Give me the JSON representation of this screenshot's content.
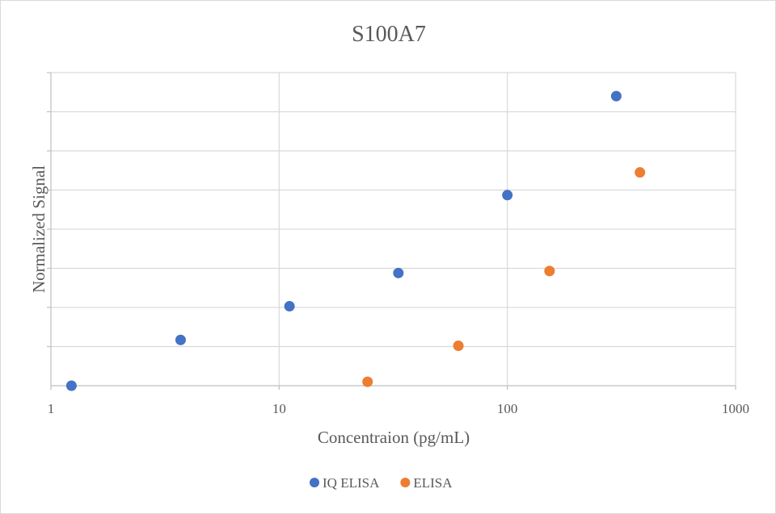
{
  "chart_data": {
    "type": "scatter",
    "title": "S100A7",
    "xlabel": "Concentraion (pg/mL)",
    "ylabel": "Normalized Signal",
    "x_scale": "log",
    "xlim": [
      1,
      1000
    ],
    "x_ticks": [
      "1",
      "10",
      "100",
      "1000"
    ],
    "ylim": [
      0,
      8
    ],
    "y_tick_labels_shown": false,
    "grid": true,
    "legend_position": "bottom",
    "series": [
      {
        "name": "IQ ELISA",
        "color": "#4472C4",
        "points": [
          {
            "x": 1.23,
            "y": 0.0
          },
          {
            "x": 3.7,
            "y": 1.17
          },
          {
            "x": 11.1,
            "y": 2.03
          },
          {
            "x": 33.3,
            "y": 2.88
          },
          {
            "x": 100,
            "y": 4.87
          },
          {
            "x": 300,
            "y": 7.4
          }
        ]
      },
      {
        "name": "ELISA",
        "color": "#ED7D31",
        "points": [
          {
            "x": 24.4,
            "y": 0.1
          },
          {
            "x": 61,
            "y": 1.02
          },
          {
            "x": 153,
            "y": 2.93
          },
          {
            "x": 381,
            "y": 5.45
          }
        ]
      }
    ]
  }
}
